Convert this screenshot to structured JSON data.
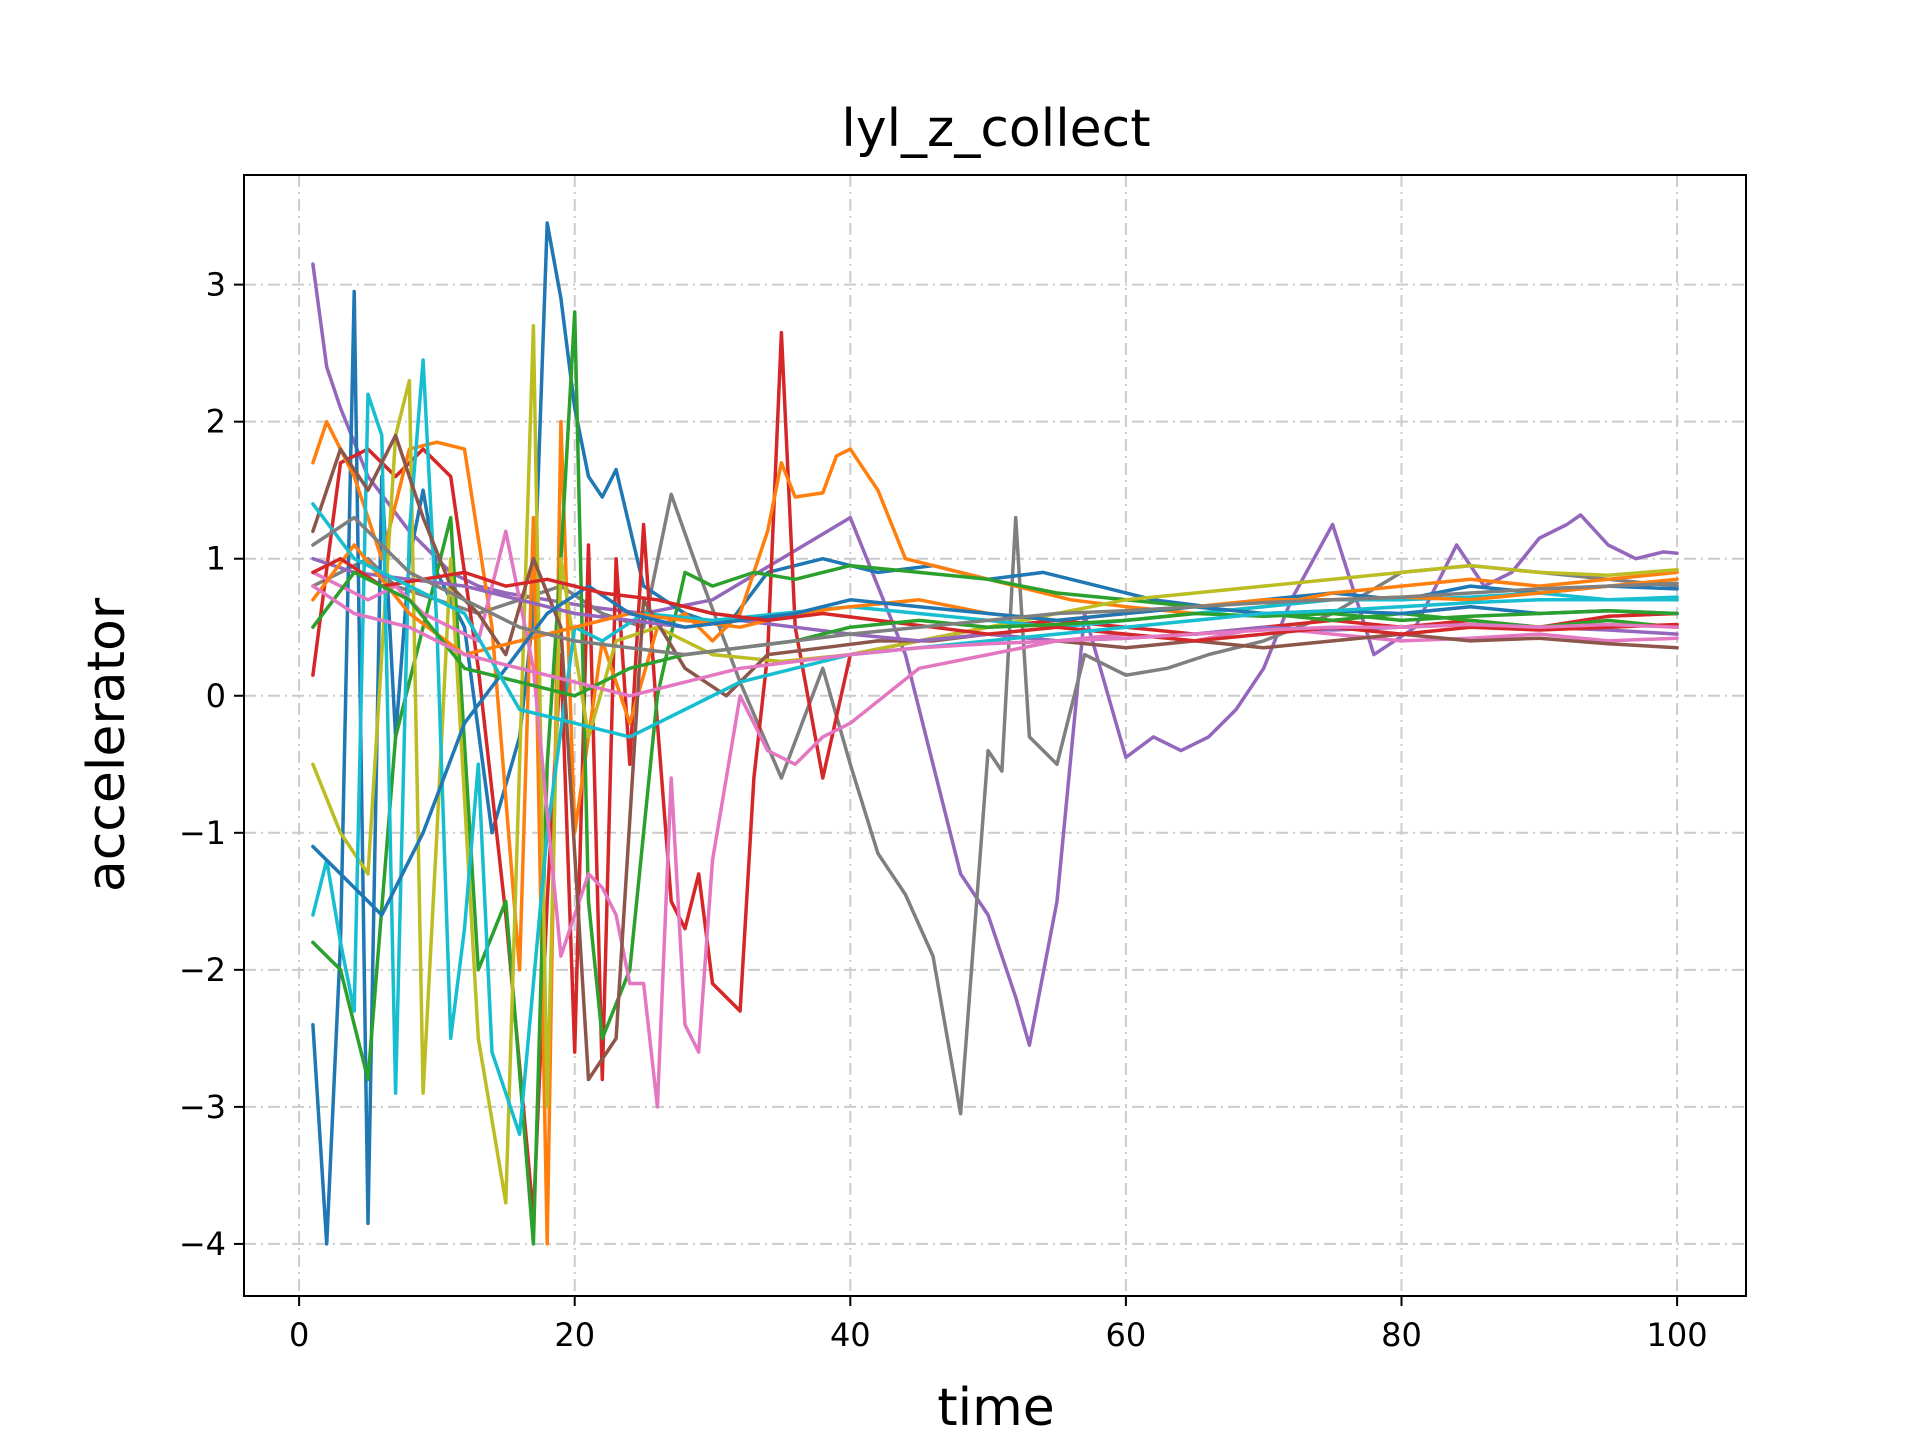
{
  "chart_data": {
    "type": "line",
    "title": "lyl_z_collect",
    "xlabel": "time",
    "ylabel": "accelerator",
    "xlim": [
      -4,
      105
    ],
    "ylim": [
      -4.38,
      3.8
    ],
    "x_ticks": [
      0,
      20,
      40,
      60,
      80,
      100
    ],
    "y_ticks": [
      -4,
      -3,
      -2,
      -1,
      0,
      1,
      2,
      3
    ],
    "x_tick_labels": [
      "0",
      "20",
      "40",
      "60",
      "80",
      "100"
    ],
    "y_tick_labels": [
      "−4",
      "−3",
      "−2",
      "−1",
      "0",
      "1",
      "2",
      "3"
    ],
    "grid": true,
    "legend": "none",
    "series": [
      {
        "color": "#9467bd",
        "x": [
          1,
          2,
          3,
          5,
          8,
          11,
          13,
          15,
          18,
          21,
          25,
          30,
          35,
          40,
          44,
          46,
          48,
          50,
          52,
          53,
          55,
          57,
          60,
          62,
          64,
          66,
          68,
          70,
          72,
          75,
          78,
          81,
          84,
          86,
          88,
          90,
          92,
          93,
          95,
          97,
          99,
          100
        ],
        "values": [
          3.15,
          2.4,
          2.1,
          1.6,
          1.2,
          0.9,
          0.8,
          0.75,
          0.7,
          0.65,
          0.6,
          0.7,
          1.0,
          1.3,
          0.3,
          -0.5,
          -1.3,
          -1.6,
          -2.2,
          -2.55,
          -1.5,
          0.6,
          -0.45,
          -0.3,
          -0.4,
          -0.3,
          -0.1,
          0.2,
          0.7,
          1.25,
          0.3,
          0.5,
          1.1,
          0.8,
          0.9,
          1.15,
          1.25,
          1.32,
          1.1,
          1.0,
          1.05,
          1.04
        ]
      },
      {
        "color": "#7f7f7f",
        "x": [
          1,
          3,
          5,
          7,
          10,
          13,
          16,
          19,
          22,
          25,
          27,
          29,
          32,
          35,
          38,
          40,
          42,
          44,
          46,
          48,
          50,
          51,
          52,
          53,
          55,
          57,
          60,
          63,
          66,
          70,
          75,
          80,
          85,
          90,
          95,
          100
        ],
        "values": [
          0.8,
          0.9,
          1.0,
          0.8,
          0.7,
          0.6,
          0.7,
          0.8,
          0.6,
          0.5,
          1.47,
          0.9,
          0.1,
          -0.6,
          0.2,
          -0.5,
          -1.15,
          -1.45,
          -1.9,
          -3.05,
          -0.4,
          -0.55,
          1.3,
          -0.3,
          -0.5,
          0.3,
          0.15,
          0.2,
          0.3,
          0.4,
          0.6,
          0.9,
          0.95,
          0.9,
          0.85,
          0.8
        ]
      },
      {
        "color": "#1f77b4",
        "x": [
          1,
          2,
          3,
          4,
          5,
          6,
          7,
          8,
          9,
          10,
          12,
          14,
          16,
          17,
          18,
          19,
          20,
          21,
          22,
          23,
          25,
          28,
          31,
          34,
          38,
          42,
          46,
          50,
          54,
          58,
          62,
          66,
          70,
          75,
          80,
          85,
          90,
          95,
          100
        ],
        "values": [
          -2.4,
          -4.0,
          -1.8,
          2.95,
          -3.85,
          1.6,
          -0.3,
          1.0,
          1.5,
          0.9,
          0.5,
          -1.0,
          -0.3,
          0.6,
          3.45,
          2.9,
          2.1,
          1.6,
          1.45,
          1.65,
          0.8,
          0.6,
          0.5,
          0.9,
          1.0,
          0.9,
          0.95,
          0.85,
          0.9,
          0.8,
          0.7,
          0.65,
          0.7,
          0.75,
          0.7,
          0.8,
          0.75,
          0.8,
          0.78
        ]
      },
      {
        "color": "#d62728",
        "x": [
          1,
          3,
          5,
          7,
          9,
          11,
          13,
          15,
          17,
          18,
          19,
          20,
          21,
          22,
          23,
          24,
          25,
          26,
          27,
          28,
          29,
          30,
          31,
          32,
          33,
          34,
          35,
          36,
          38,
          40,
          45,
          50,
          55,
          60,
          65,
          70,
          75,
          80,
          85,
          90,
          95,
          100
        ],
        "values": [
          0.15,
          1.7,
          1.8,
          1.6,
          1.8,
          1.6,
          0.2,
          -1.6,
          -3.8,
          -1.5,
          0.3,
          -2.6,
          1.1,
          -2.8,
          1.0,
          -0.5,
          1.25,
          -0.2,
          -1.5,
          -1.7,
          -1.3,
          -2.1,
          -2.2,
          -2.3,
          -0.6,
          0.3,
          2.65,
          0.5,
          -0.6,
          0.3,
          0.4,
          0.5,
          0.55,
          0.5,
          0.45,
          0.5,
          0.55,
          0.5,
          0.55,
          0.5,
          0.58,
          0.6
        ]
      },
      {
        "color": "#ff7f0e",
        "x": [
          1,
          2,
          4,
          6,
          8,
          10,
          12,
          14,
          16,
          17,
          18,
          19,
          20,
          22,
          24,
          26,
          28,
          30,
          32,
          34,
          35,
          36,
          38,
          39,
          40,
          42,
          44,
          48,
          52,
          56,
          60,
          65,
          70,
          75,
          80,
          85,
          90,
          95,
          100
        ],
        "values": [
          1.7,
          2.0,
          1.6,
          1.0,
          1.8,
          1.85,
          1.8,
          0.5,
          -2.0,
          1.3,
          -4.0,
          2.0,
          -1.0,
          0.4,
          -0.2,
          0.5,
          0.6,
          0.4,
          0.6,
          1.2,
          1.7,
          1.45,
          1.48,
          1.75,
          1.8,
          1.5,
          1.0,
          0.9,
          0.8,
          0.7,
          0.65,
          0.6,
          0.65,
          0.75,
          0.8,
          0.85,
          0.8,
          0.85,
          0.9
        ]
      },
      {
        "color": "#2ca02c",
        "x": [
          1,
          3,
          5,
          7,
          9,
          11,
          13,
          15,
          17,
          18,
          19,
          20,
          21,
          22,
          24,
          26,
          28,
          30,
          33,
          36,
          40,
          45,
          50,
          55,
          60,
          65,
          70,
          75,
          80,
          85,
          90,
          95,
          100
        ],
        "values": [
          -1.8,
          -2.0,
          -2.8,
          -0.3,
          0.5,
          1.3,
          -2.0,
          -1.5,
          -4.0,
          -0.5,
          1.0,
          2.8,
          -1.5,
          -2.5,
          -2.0,
          0.0,
          0.9,
          0.8,
          0.9,
          0.85,
          0.95,
          0.9,
          0.85,
          0.75,
          0.7,
          0.65,
          0.6,
          0.55,
          0.6,
          0.55,
          0.5,
          0.55,
          0.5
        ]
      },
      {
        "color": "#bcbd22",
        "x": [
          1,
          3,
          5,
          7,
          8,
          9,
          10,
          11,
          13,
          15,
          17,
          18,
          19,
          21,
          23,
          26,
          30,
          35,
          40,
          45,
          50,
          55,
          60,
          65,
          70,
          75,
          80,
          85,
          90,
          95,
          100
        ],
        "values": [
          -0.5,
          -1.0,
          -1.3,
          1.9,
          2.3,
          -2.9,
          -1.0,
          1.0,
          -2.5,
          -3.7,
          2.7,
          -3.0,
          1.0,
          -0.3,
          0.4,
          0.5,
          0.3,
          0.25,
          0.3,
          0.4,
          0.5,
          0.6,
          0.7,
          0.75,
          0.8,
          0.85,
          0.9,
          0.95,
          0.9,
          0.88,
          0.92
        ]
      },
      {
        "color": "#17becf",
        "x": [
          1,
          2,
          3,
          4,
          5,
          6,
          7,
          8,
          9,
          10,
          11,
          12,
          13,
          14,
          16,
          18,
          20,
          22,
          25,
          30,
          35,
          40,
          45,
          50,
          55,
          60,
          65,
          70,
          75,
          80,
          85,
          90,
          95,
          100
        ],
        "values": [
          -1.6,
          -1.2,
          -1.8,
          -2.3,
          2.2,
          1.9,
          -2.9,
          1.2,
          2.45,
          0.5,
          -2.5,
          -1.7,
          -0.5,
          -2.6,
          -3.2,
          -1.0,
          0.5,
          0.4,
          0.6,
          0.55,
          0.6,
          0.65,
          0.6,
          0.55,
          0.5,
          0.55,
          0.6,
          0.65,
          0.7,
          0.7,
          0.72,
          0.75,
          0.7,
          0.7
        ]
      },
      {
        "color": "#e377c2",
        "x": [
          1,
          3,
          5,
          7,
          9,
          11,
          13,
          15,
          17,
          19,
          21,
          22,
          23,
          24,
          25,
          26,
          27,
          28,
          29,
          30,
          32,
          34,
          36,
          38,
          40,
          45,
          50,
          55,
          60,
          65,
          70,
          75,
          80,
          85,
          90,
          95,
          100
        ],
        "values": [
          0.9,
          0.8,
          0.7,
          0.8,
          0.6,
          0.5,
          0.4,
          1.2,
          0.2,
          -1.9,
          -1.3,
          -1.4,
          -1.6,
          -2.1,
          -2.1,
          -3.0,
          -0.6,
          -2.4,
          -2.6,
          -1.2,
          0.0,
          -0.4,
          -0.5,
          -0.3,
          -0.2,
          0.2,
          0.3,
          0.4,
          0.45,
          0.4,
          0.5,
          0.45,
          0.4,
          0.42,
          0.45,
          0.4,
          0.42
        ]
      },
      {
        "color": "#8c564b",
        "x": [
          1,
          3,
          5,
          7,
          9,
          11,
          13,
          15,
          17,
          19,
          21,
          23,
          25,
          28,
          31,
          34,
          38,
          42,
          46,
          50,
          55,
          60,
          65,
          70,
          75,
          80,
          85,
          90,
          95,
          100
        ],
        "values": [
          1.2,
          1.8,
          1.5,
          1.9,
          1.3,
          0.8,
          0.6,
          0.3,
          1.0,
          0.5,
          -2.8,
          -2.5,
          0.7,
          0.2,
          0.0,
          0.3,
          0.35,
          0.4,
          0.4,
          0.45,
          0.4,
          0.35,
          0.4,
          0.35,
          0.4,
          0.45,
          0.4,
          0.42,
          0.38,
          0.35
        ]
      },
      {
        "color": "#9467bd",
        "x": [
          1,
          4,
          8,
          12,
          16,
          20,
          24,
          28,
          32,
          36,
          40,
          45,
          50,
          55,
          60,
          65,
          70,
          75,
          80,
          85,
          90,
          95,
          100
        ],
        "values": [
          1.0,
          0.9,
          0.85,
          0.8,
          0.7,
          0.6,
          0.55,
          0.5,
          0.55,
          0.5,
          0.45,
          0.4,
          0.45,
          0.4,
          0.42,
          0.45,
          0.5,
          0.48,
          0.5,
          0.52,
          0.5,
          0.48,
          0.45
        ]
      },
      {
        "color": "#ff7f0e",
        "x": [
          1,
          4,
          8,
          12,
          16,
          20,
          24,
          28,
          32,
          36,
          40,
          45,
          50,
          55,
          60,
          65,
          70,
          75,
          80,
          85,
          90,
          95,
          100
        ],
        "values": [
          0.7,
          1.1,
          0.6,
          0.3,
          0.4,
          0.5,
          0.6,
          0.55,
          0.5,
          0.6,
          0.65,
          0.7,
          0.6,
          0.55,
          0.6,
          0.65,
          0.7,
          0.7,
          0.72,
          0.7,
          0.75,
          0.8,
          0.85
        ]
      },
      {
        "color": "#1f77b4",
        "x": [
          1,
          3,
          6,
          9,
          12,
          15,
          18,
          21,
          24,
          28,
          32,
          36,
          40,
          45,
          50,
          55,
          60,
          65,
          70,
          75,
          80,
          85,
          90,
          95,
          100
        ],
        "values": [
          -1.1,
          -1.3,
          -1.6,
          -1.0,
          -0.2,
          0.2,
          0.6,
          0.8,
          0.6,
          0.5,
          0.55,
          0.6,
          0.7,
          0.65,
          0.6,
          0.55,
          0.6,
          0.65,
          0.6,
          0.62,
          0.6,
          0.65,
          0.6,
          0.62,
          0.6
        ]
      },
      {
        "color": "#d62728",
        "x": [
          1,
          3,
          6,
          9,
          12,
          15,
          18,
          22,
          26,
          30,
          34,
          38,
          42,
          46,
          50,
          55,
          60,
          65,
          70,
          75,
          80,
          85,
          90,
          95,
          100
        ],
        "values": [
          0.9,
          1.0,
          0.8,
          0.85,
          0.9,
          0.8,
          0.85,
          0.75,
          0.7,
          0.6,
          0.55,
          0.6,
          0.55,
          0.5,
          0.45,
          0.5,
          0.45,
          0.4,
          0.45,
          0.5,
          0.45,
          0.5,
          0.48,
          0.5,
          0.52
        ]
      },
      {
        "color": "#2ca02c",
        "x": [
          1,
          4,
          8,
          12,
          16,
          20,
          24,
          28,
          32,
          36,
          40,
          45,
          50,
          55,
          60,
          65,
          70,
          75,
          80,
          85,
          90,
          95,
          100
        ],
        "values": [
          0.5,
          0.9,
          0.7,
          0.2,
          0.1,
          0.0,
          0.2,
          0.3,
          0.35,
          0.4,
          0.5,
          0.55,
          0.5,
          0.52,
          0.55,
          0.6,
          0.58,
          0.6,
          0.55,
          0.58,
          0.6,
          0.62,
          0.6
        ]
      },
      {
        "color": "#17becf",
        "x": [
          1,
          4,
          8,
          12,
          16,
          20,
          24,
          28,
          32,
          36,
          40,
          45,
          50,
          55,
          60,
          65,
          70,
          75,
          80,
          85,
          90,
          95,
          100
        ],
        "values": [
          1.4,
          1.0,
          0.8,
          0.6,
          -0.1,
          -0.2,
          -0.3,
          -0.1,
          0.1,
          0.2,
          0.3,
          0.35,
          0.4,
          0.45,
          0.5,
          0.55,
          0.6,
          0.62,
          0.65,
          0.68,
          0.7,
          0.7,
          0.72
        ]
      },
      {
        "color": "#e377c2",
        "x": [
          1,
          4,
          8,
          12,
          16,
          20,
          24,
          28,
          32,
          36,
          40,
          45,
          50,
          55,
          60,
          65,
          70,
          75,
          80,
          85,
          90,
          95,
          100
        ],
        "values": [
          0.8,
          0.6,
          0.5,
          0.3,
          0.2,
          0.1,
          0.0,
          0.1,
          0.2,
          0.25,
          0.3,
          0.35,
          0.38,
          0.4,
          0.42,
          0.45,
          0.48,
          0.5,
          0.5,
          0.52,
          0.5,
          0.52,
          0.5
        ]
      },
      {
        "color": "#7f7f7f",
        "x": [
          1,
          4,
          8,
          12,
          16,
          20,
          24,
          28,
          32,
          36,
          40,
          45,
          50,
          55,
          60,
          65,
          70,
          75,
          80,
          85,
          90,
          95,
          100
        ],
        "values": [
          1.1,
          1.3,
          0.9,
          0.7,
          0.5,
          0.4,
          0.35,
          0.3,
          0.35,
          0.4,
          0.45,
          0.5,
          0.55,
          0.6,
          0.62,
          0.65,
          0.68,
          0.7,
          0.72,
          0.75,
          0.78,
          0.8,
          0.82
        ]
      }
    ]
  }
}
